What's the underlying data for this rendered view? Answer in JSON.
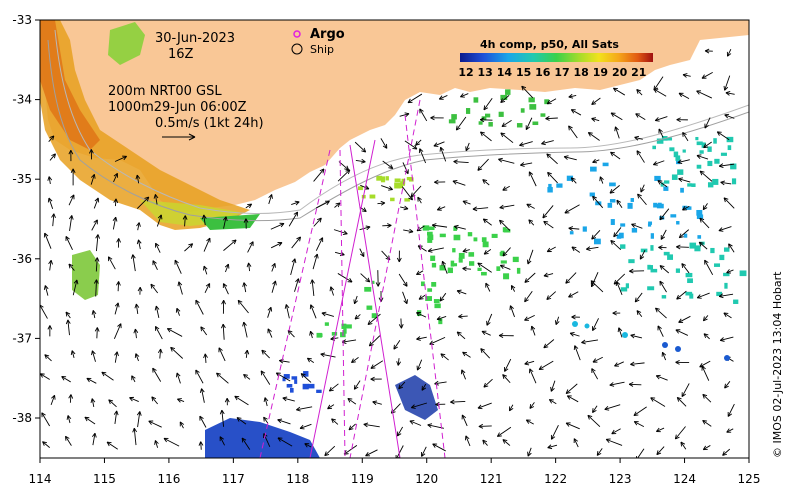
{
  "map": {
    "date": "30-Jun-2023",
    "hour": "16Z",
    "contour_label": "200m  NRT00 GSL",
    "contour_label_2": "1000m29-Jun 06:00Z",
    "scale_label": "0.5m/s (1kt 24h)",
    "legend_argo": "Argo",
    "legend_ship": "Ship",
    "colorbar_title": "4h comp, p50, All Sats",
    "colorbar_ticks": [
      "12",
      "13",
      "14",
      "15",
      "16",
      "17",
      "18",
      "19",
      "20",
      "21"
    ],
    "credit": "© IMOS 02-Jul-2023 13:04 Hobart",
    "x_ticks": [
      "114",
      "115",
      "116",
      "117",
      "118",
      "119",
      "120",
      "121",
      "122",
      "123",
      "124",
      "125"
    ],
    "y_ticks": [
      "-33",
      "-34",
      "-35",
      "-36",
      "-37",
      "-38"
    ],
    "colors": {
      "land": "#f9c796",
      "argo": "#e020e0",
      "track": "#d020d0"
    }
  }
}
